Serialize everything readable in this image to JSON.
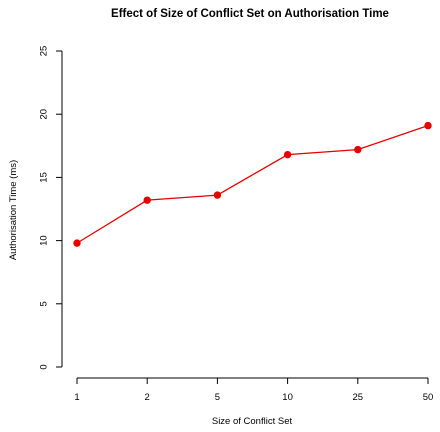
{
  "chart_data": {
    "type": "line",
    "title": "Effect of Size of Conflict Set on Authorisation Time",
    "xlabel": "Size of Conflict Set",
    "ylabel": "Authorisation Time (ms)",
    "categories": [
      "1",
      "2",
      "5",
      "10",
      "25",
      "50"
    ],
    "series": [
      {
        "values": [
          9.8,
          13.2,
          13.6,
          16.8,
          17.2,
          19.1
        ]
      }
    ],
    "ylim": [
      0,
      25
    ],
    "yticks": [
      "0",
      "5",
      "10",
      "15",
      "20",
      "25"
    ],
    "grid": false,
    "series_color": "#e60000"
  }
}
